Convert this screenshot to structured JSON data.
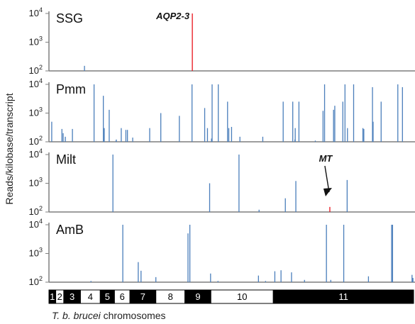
{
  "chart_data": [
    {
      "type": "bar",
      "title": "SSG",
      "ylabel": "Reads/kilobase/transcript",
      "yscale": "log",
      "ylim": [
        100,
        10000
      ],
      "yticks": [
        {
          "exp": "2"
        },
        {
          "exp": "3"
        },
        {
          "exp": "4"
        }
      ],
      "ytick_base": "10",
      "xlabel": "T. b. brucei chromosomes",
      "series": [
        {
          "name": "",
          "color": "#4a7ebb",
          "points": [
            [
              11.5,
              150
            ]
          ]
        },
        {
          "name": "",
          "color": "#e8111b",
          "points": [
            [
              46.4,
              10000
            ]
          ]
        }
      ],
      "annotations": [
        {
          "text": "AQP2-3",
          "x": 46.4,
          "style": "bold-italic"
        }
      ]
    },
    {
      "type": "bar",
      "title": "Pmm",
      "yscale": "log",
      "ylim": [
        100,
        10000
      ],
      "yticks": [
        {
          "exp": "2"
        },
        {
          "exp": "3"
        },
        {
          "exp": "4"
        }
      ],
      "series": [
        {
          "name": "",
          "color": "#4a7ebb",
          "points": [
            [
              0.9,
              500
            ],
            [
              4.2,
              280
            ],
            [
              4.6,
              200
            ],
            [
              5.3,
              150
            ],
            [
              7.6,
              280
            ],
            [
              14.6,
              10000
            ],
            [
              17.6,
              4000
            ],
            [
              17.9,
              300
            ],
            [
              19.5,
              1300
            ],
            [
              21.7,
              110
            ],
            [
              21.8,
              120
            ],
            [
              23.4,
              300
            ],
            [
              24.9,
              260
            ],
            [
              25.4,
              260
            ],
            [
              27.1,
              140
            ],
            [
              32.6,
              300
            ],
            [
              36.2,
              1000
            ],
            [
              42.2,
              800
            ],
            [
              46.3,
              10000
            ],
            [
              50.4,
              1500
            ],
            [
              51.3,
              300
            ],
            [
              52.6,
              130
            ],
            [
              52.8,
              10000
            ],
            [
              54.8,
              10000
            ],
            [
              57.8,
              2500
            ],
            [
              58.2,
              300
            ],
            [
              59.1,
              330
            ],
            [
              61.8,
              150
            ],
            [
              69.2,
              150
            ],
            [
              75.8,
              2500
            ],
            [
              78.9,
              2500
            ],
            [
              79.6,
              120
            ],
            [
              79.7,
              300
            ],
            [
              80.9,
              2500
            ],
            [
              86.2,
              110
            ],
            [
              88.7,
              1200
            ],
            [
              89.2,
              10000
            ],
            [
              92.1,
              1300
            ],
            [
              92.5,
              1800
            ],
            [
              95.1,
              2500
            ],
            [
              95.8,
              10000
            ],
            [
              96.6,
              300
            ],
            [
              98.6,
              10000
            ],
            [
              101.6,
              300
            ],
            [
              101.9,
              280
            ],
            [
              104.7,
              8000
            ],
            [
              104.9,
              500
            ],
            [
              107.5,
              2500
            ],
            [
              112.9,
              10000
            ],
            [
              114.4,
              8000
            ]
          ]
        }
      ]
    },
    {
      "type": "bar",
      "title": "Milt",
      "yscale": "log",
      "ylim": [
        100,
        10000
      ],
      "yticks": [
        {
          "exp": "2"
        },
        {
          "exp": "3"
        },
        {
          "exp": "4"
        }
      ],
      "series": [
        {
          "name": "",
          "color": "#4a7ebb",
          "points": [
            [
              20.7,
              10000
            ],
            [
              52.0,
              1000
            ],
            [
              61.5,
              10000
            ],
            [
              68.0,
              120
            ],
            [
              76.5,
              300
            ],
            [
              79.9,
              1200
            ],
            [
              96.5,
              1300
            ]
          ]
        },
        {
          "name": "",
          "color": "#e8111b",
          "points": [
            [
              90.9,
              150
            ]
          ]
        }
      ],
      "annotations": [
        {
          "text": "MT",
          "x": 90.9,
          "style": "bold-italic-arrow"
        }
      ]
    },
    {
      "type": "bar",
      "title": "AmB",
      "yscale": "log",
      "ylim": [
        100,
        10000
      ],
      "yticks": [
        {
          "exp": "2"
        },
        {
          "exp": "3"
        },
        {
          "exp": "4"
        }
      ],
      "series": [
        {
          "name": "",
          "color": "#4a7ebb",
          "points": [
            [
              13.6,
              110
            ],
            [
              23.9,
              10000
            ],
            [
              28.9,
              500
            ],
            [
              29.8,
              250
            ],
            [
              34.6,
              150
            ],
            [
              45.0,
              5000
            ],
            [
              45.6,
              10000
            ],
            [
              52.3,
              200
            ],
            [
              54.7,
              110
            ],
            [
              67.8,
              170
            ],
            [
              70.1,
              110
            ],
            [
              73.1,
              240
            ],
            [
              75.1,
              260
            ],
            [
              78.5,
              220
            ],
            [
              82.7,
              120
            ],
            [
              89.8,
              10000
            ],
            [
              91.2,
              120
            ],
            [
              95.4,
              10000
            ],
            [
              103.4,
              160
            ],
            [
              110.9,
              10000
            ],
            [
              111.2,
              10000
            ],
            [
              117.5,
              180
            ],
            [
              117.8,
              140
            ]
          ]
        }
      ]
    }
  ],
  "chromosomes": [
    {
      "label": "1",
      "start": 0,
      "end": 2.2,
      "fill": "#000000"
    },
    {
      "label": "2",
      "start": 2.2,
      "end": 4.8,
      "fill": "#ffffff"
    },
    {
      "label": "3",
      "start": 4.8,
      "end": 10.2,
      "fill": "#000000"
    },
    {
      "label": "4",
      "start": 10.2,
      "end": 16.6,
      "fill": "#ffffff"
    },
    {
      "label": "5",
      "start": 16.6,
      "end": 21.2,
      "fill": "#000000"
    },
    {
      "label": "6",
      "start": 21.2,
      "end": 26.2,
      "fill": "#ffffff"
    },
    {
      "label": "7",
      "start": 26.2,
      "end": 34.6,
      "fill": "#000000"
    },
    {
      "label": "8",
      "start": 34.6,
      "end": 44.0,
      "fill": "#ffffff"
    },
    {
      "label": "9",
      "start": 44.0,
      "end": 52.4,
      "fill": "#000000"
    },
    {
      "label": "10",
      "start": 52.4,
      "end": 72.6,
      "fill": "#ffffff"
    },
    {
      "label": "11",
      "start": 72.6,
      "end": 118.0,
      "fill": "#000000"
    }
  ],
  "colors": {
    "track": "#4a7ebb",
    "highlight": "#e8111b",
    "axis": "#7f7f7f"
  }
}
